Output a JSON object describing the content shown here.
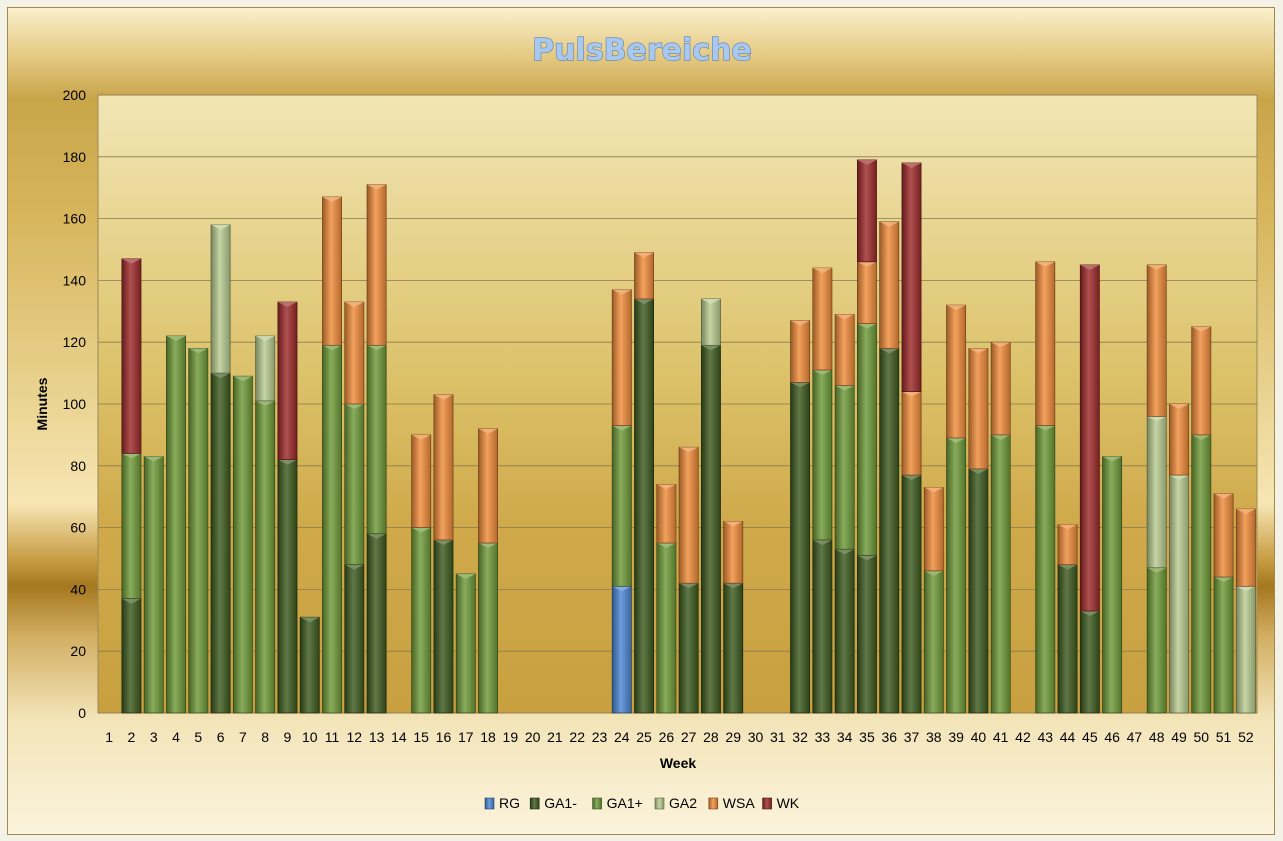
{
  "chart_data": {
    "type": "bar",
    "stacked": true,
    "title": "PulsBereiche",
    "xlabel": "Week",
    "ylabel": "Minutes",
    "ylim": [
      0,
      200
    ],
    "yticks": [
      0,
      20,
      40,
      60,
      80,
      100,
      120,
      140,
      160,
      180,
      200
    ],
    "grid": true,
    "legend_position": "bottom",
    "categories": [
      "1",
      "2",
      "3",
      "4",
      "5",
      "6",
      "7",
      "8",
      "9",
      "10",
      "11",
      "12",
      "13",
      "14",
      "15",
      "16",
      "17",
      "18",
      "19",
      "20",
      "21",
      "22",
      "23",
      "24",
      "25",
      "26",
      "27",
      "28",
      "29",
      "30",
      "31",
      "32",
      "33",
      "34",
      "35",
      "36",
      "37",
      "38",
      "39",
      "40",
      "41",
      "42",
      "43",
      "44",
      "45",
      "46",
      "47",
      "48",
      "49",
      "50",
      "51",
      "52"
    ],
    "series": [
      {
        "name": "RG",
        "color": "#4a86d4",
        "values": [
          0,
          0,
          0,
          0,
          0,
          0,
          0,
          0,
          0,
          0,
          0,
          0,
          0,
          0,
          0,
          0,
          0,
          0,
          0,
          0,
          0,
          0,
          0,
          41,
          0,
          0,
          0,
          0,
          0,
          0,
          0,
          0,
          0,
          0,
          0,
          0,
          0,
          0,
          0,
          0,
          0,
          0,
          0,
          0,
          0,
          0,
          0,
          0,
          0,
          0,
          0,
          0
        ]
      },
      {
        "name": "GA1-",
        "color": "#3d5a1f",
        "values": [
          0,
          37,
          0,
          0,
          0,
          110,
          0,
          0,
          82,
          31,
          0,
          48,
          58,
          0,
          0,
          56,
          0,
          0,
          0,
          0,
          0,
          0,
          0,
          0,
          134,
          0,
          42,
          119,
          42,
          0,
          0,
          107,
          56,
          53,
          51,
          118,
          77,
          0,
          0,
          79,
          0,
          0,
          0,
          48,
          33,
          0,
          0,
          0,
          0,
          0,
          0,
          0
        ]
      },
      {
        "name": "GA1+",
        "color": "#6e9a38",
        "values": [
          0,
          47,
          83,
          122,
          118,
          0,
          109,
          101,
          0,
          0,
          119,
          52,
          61,
          0,
          60,
          0,
          45,
          55,
          0,
          0,
          0,
          0,
          0,
          52,
          0,
          55,
          0,
          0,
          0,
          0,
          0,
          0,
          55,
          53,
          75,
          0,
          0,
          46,
          89,
          0,
          90,
          0,
          93,
          0,
          0,
          83,
          0,
          47,
          0,
          90,
          44,
          0
        ]
      },
      {
        "name": "GA2",
        "color": "#b8cc90",
        "values": [
          0,
          0,
          0,
          0,
          0,
          48,
          0,
          21,
          0,
          0,
          0,
          0,
          0,
          0,
          0,
          0,
          0,
          0,
          0,
          0,
          0,
          0,
          0,
          0,
          0,
          0,
          0,
          15,
          0,
          0,
          0,
          0,
          0,
          0,
          0,
          0,
          0,
          0,
          0,
          0,
          0,
          0,
          0,
          0,
          0,
          0,
          0,
          49,
          77,
          0,
          0,
          41
        ]
      },
      {
        "name": "WSA",
        "color": "#f08c3a",
        "values": [
          0,
          0,
          0,
          0,
          0,
          0,
          0,
          0,
          0,
          0,
          48,
          33,
          52,
          0,
          30,
          47,
          0,
          37,
          0,
          0,
          0,
          0,
          0,
          44,
          15,
          19,
          44,
          0,
          20,
          0,
          0,
          20,
          33,
          23,
          20,
          41,
          27,
          27,
          43,
          39,
          30,
          0,
          53,
          13,
          0,
          0,
          0,
          49,
          23,
          35,
          27,
          25
        ]
      },
      {
        "name": "WK",
        "color": "#9e2a2a",
        "values": [
          0,
          63,
          0,
          0,
          0,
          0,
          0,
          0,
          51,
          0,
          0,
          0,
          0,
          0,
          0,
          0,
          0,
          0,
          0,
          0,
          0,
          0,
          0,
          0,
          0,
          0,
          0,
          0,
          0,
          0,
          0,
          0,
          0,
          0,
          33,
          0,
          74,
          0,
          0,
          0,
          0,
          0,
          0,
          0,
          112,
          0,
          0,
          0,
          0,
          0,
          0,
          0
        ]
      }
    ]
  }
}
